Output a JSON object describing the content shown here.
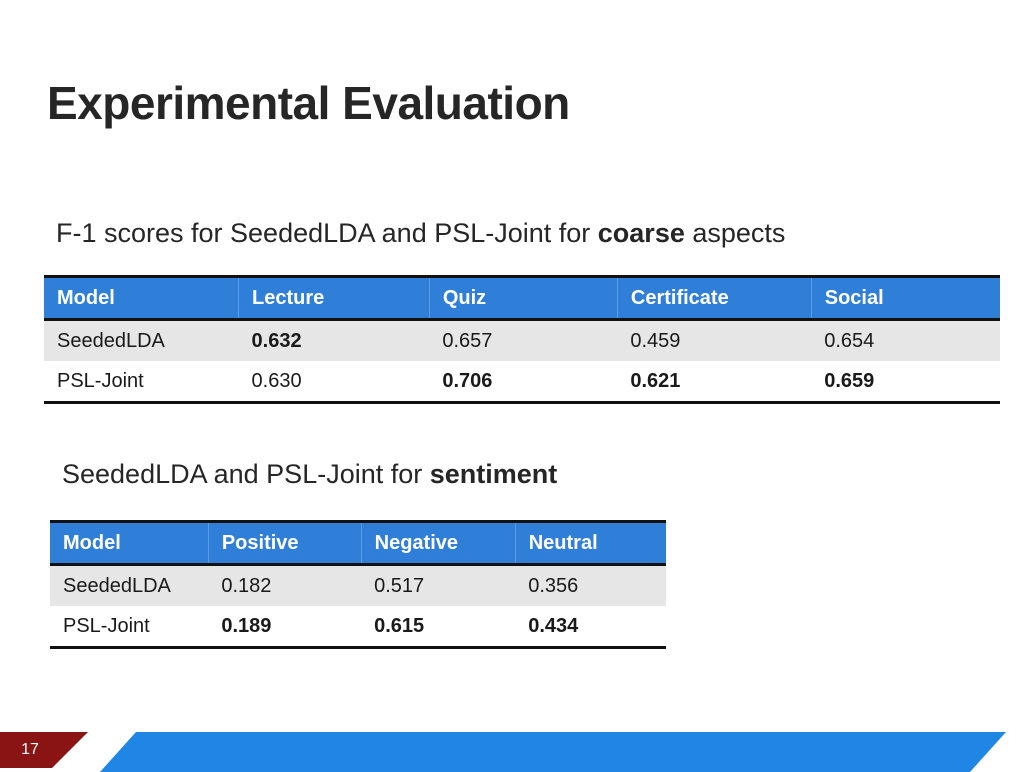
{
  "title": "Experimental Evaluation",
  "section1": {
    "caption_prefix": "F-1 scores for SeededLDA and PSL-Joint for ",
    "caption_bold": "coarse",
    "caption_suffix": " aspects",
    "headers": [
      "Model",
      "Lecture",
      "Quiz",
      "Certificate",
      "Social"
    ],
    "rows": [
      {
        "cells": [
          "SeededLDA",
          "0.632",
          "0.657",
          "0.459",
          "0.654"
        ],
        "bold": [
          false,
          true,
          false,
          false,
          false
        ]
      },
      {
        "cells": [
          "PSL-Joint",
          "0.630",
          "0.706",
          "0.621",
          "0.659"
        ],
        "bold": [
          false,
          false,
          true,
          true,
          true
        ]
      }
    ]
  },
  "section2": {
    "caption_prefix": "SeededLDA and PSL-Joint for ",
    "caption_bold": "sentiment",
    "headers": [
      "Model",
      "Positive",
      "Negative",
      "Neutral"
    ],
    "rows": [
      {
        "cells": [
          "SeededLDA",
          "0.182",
          "0.517",
          "0.356"
        ],
        "bold": [
          false,
          false,
          false,
          false
        ]
      },
      {
        "cells": [
          "PSL-Joint",
          "0.189",
          "0.615",
          "0.434"
        ],
        "bold": [
          false,
          true,
          true,
          true
        ]
      }
    ]
  },
  "footer": {
    "page_number": "17"
  },
  "colors": {
    "header_blue": "#2f7fd8",
    "footer_blue": "#1f86e6",
    "page_tab_red": "#8a1414",
    "row_gray": "#e6e6e6"
  }
}
